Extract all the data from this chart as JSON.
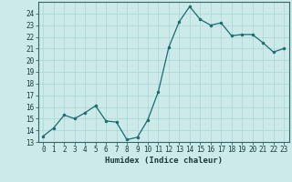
{
  "x": [
    0,
    1,
    2,
    3,
    4,
    5,
    6,
    7,
    8,
    9,
    10,
    11,
    12,
    13,
    14,
    15,
    16,
    17,
    18,
    19,
    20,
    21,
    22,
    23
  ],
  "y": [
    13.5,
    14.2,
    15.3,
    15.0,
    15.5,
    16.1,
    14.8,
    14.7,
    13.2,
    13.4,
    14.9,
    17.3,
    21.1,
    23.3,
    24.6,
    23.5,
    23.0,
    23.2,
    22.1,
    22.2,
    22.2,
    21.5,
    20.7,
    21.0
  ],
  "line_color": "#1a6b6b",
  "marker": "o",
  "marker_size": 2,
  "bg_color": "#cceaea",
  "grid_color": "#b0d8d8",
  "xlabel": "Humidex (Indice chaleur)",
  "ylim": [
    13,
    25
  ],
  "xlim": [
    -0.5,
    23.5
  ],
  "yticks": [
    13,
    14,
    15,
    16,
    17,
    18,
    19,
    20,
    21,
    22,
    23,
    24
  ],
  "xticks": [
    0,
    1,
    2,
    3,
    4,
    5,
    6,
    7,
    8,
    9,
    10,
    11,
    12,
    13,
    14,
    15,
    16,
    17,
    18,
    19,
    20,
    21,
    22,
    23
  ],
  "tick_fontsize": 5.5,
  "label_fontsize": 6.5,
  "fig_width": 3.2,
  "fig_height": 2.0,
  "dpi": 100
}
